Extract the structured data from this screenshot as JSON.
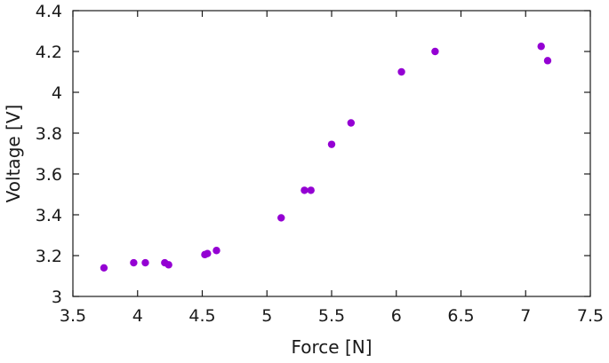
{
  "chart_data": {
    "type": "scatter",
    "xlabel": "Force [N]",
    "ylabel": "Voltage [V]",
    "xlim": [
      3.5,
      7.5
    ],
    "ylim": [
      3.0,
      4.4
    ],
    "x_ticks": [
      "3.5",
      "4",
      "4.5",
      "5",
      "5.5",
      "6",
      "6.5",
      "7",
      "7.5"
    ],
    "y_ticks": [
      "3",
      "3.2",
      "3.4",
      "3.6",
      "3.8",
      "4",
      "4.2",
      "4.4"
    ],
    "grid": false,
    "marker_color": "#9400d3",
    "series": [
      {
        "points": [
          {
            "x": 3.74,
            "y": 3.14
          },
          {
            "x": 3.97,
            "y": 3.165
          },
          {
            "x": 4.06,
            "y": 3.165
          },
          {
            "x": 4.21,
            "y": 3.165
          },
          {
            "x": 4.24,
            "y": 3.155
          },
          {
            "x": 4.52,
            "y": 3.205
          },
          {
            "x": 4.54,
            "y": 3.21
          },
          {
            "x": 4.61,
            "y": 3.225
          },
          {
            "x": 5.11,
            "y": 3.385
          },
          {
            "x": 5.29,
            "y": 3.52
          },
          {
            "x": 5.34,
            "y": 3.52
          },
          {
            "x": 5.5,
            "y": 3.745
          },
          {
            "x": 5.65,
            "y": 3.85
          },
          {
            "x": 6.04,
            "y": 4.1
          },
          {
            "x": 6.3,
            "y": 4.2
          },
          {
            "x": 7.12,
            "y": 4.225
          },
          {
            "x": 7.17,
            "y": 4.155
          }
        ]
      }
    ]
  }
}
